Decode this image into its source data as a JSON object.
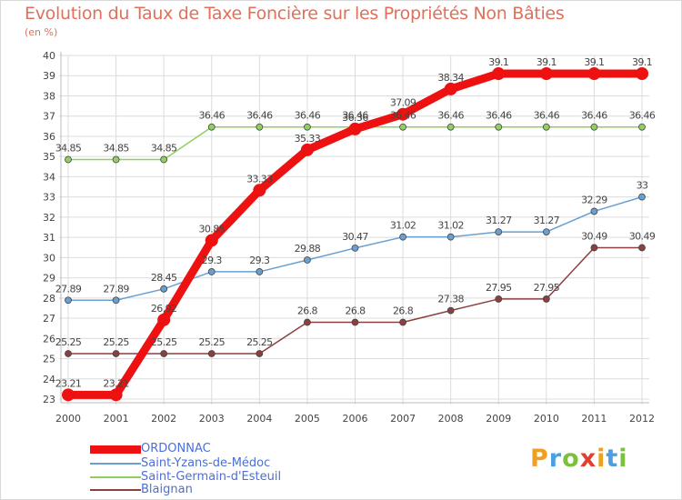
{
  "title": "Evolution du Taux de Taxe Foncière sur les Propriétés Non Bâties",
  "subtitle": "(en %)",
  "logo": {
    "letters": [
      "P",
      "r",
      "o",
      "x",
      "i",
      "t",
      "i"
    ],
    "colors": [
      "#f0a020",
      "#4aa0e0",
      "#7cc040",
      "#e04030",
      "#f0a020",
      "#4aa0e0",
      "#7cc040"
    ]
  },
  "chart_data": {
    "type": "line",
    "x": [
      "2000",
      "2001",
      "2002",
      "2003",
      "2004",
      "2005",
      "2006",
      "2007",
      "2008",
      "2009",
      "2010",
      "2011",
      "2012"
    ],
    "ylim": [
      23,
      40
    ],
    "yticks": [
      23,
      24,
      25,
      26,
      27,
      28,
      29,
      30,
      31,
      32,
      33,
      34,
      35,
      36,
      37,
      38,
      39,
      40
    ],
    "grid": true,
    "legend_position": "bottom-left",
    "series": [
      {
        "name": "ORDONNAC",
        "color": "#ee1111",
        "values": [
          23.21,
          23.21,
          26.92,
          30.85,
          33.33,
          35.33,
          36.36,
          37.09,
          38.34,
          39.1,
          39.1,
          39.1,
          39.1
        ],
        "labels": [
          "23.21",
          "23.21",
          "26.92",
          "30.85",
          "33.33",
          "35.33",
          "36.36",
          "37.09",
          "38.34",
          "39.1",
          "39.1",
          "39.1",
          "39.1"
        ]
      },
      {
        "name": "Saint-Yzans-de-Médoc",
        "color": "#6a9fd0",
        "values": [
          27.89,
          27.89,
          28.45,
          29.3,
          29.3,
          29.88,
          30.47,
          31.02,
          31.02,
          31.27,
          31.27,
          32.29,
          33
        ],
        "labels": [
          "27.89",
          "27.89",
          "28.45",
          "29.3",
          "29.3",
          "29.88",
          "30.47",
          "31.02",
          "31.02",
          "31.27",
          "31.27",
          "32.29",
          "33"
        ]
      },
      {
        "name": "Saint-Germain-d'Esteuil",
        "color": "#90d060",
        "values": [
          34.85,
          34.85,
          34.85,
          36.46,
          36.46,
          36.46,
          36.46,
          36.46,
          36.46,
          36.46,
          36.46,
          36.46,
          36.46
        ],
        "labels": [
          "34.85",
          "34.85",
          "34.85",
          "36.46",
          "36.46",
          "36.46",
          "36.46",
          "36.46",
          "36.46",
          "36.46",
          "36.46",
          "36.46",
          "36.46"
        ]
      },
      {
        "name": "Blaignan",
        "color": "#8a4040",
        "values": [
          25.25,
          25.25,
          25.25,
          25.25,
          25.25,
          26.8,
          26.8,
          26.8,
          27.38,
          27.95,
          27.95,
          30.49,
          30.49
        ],
        "labels": [
          "25.25",
          "25.25",
          "25.25",
          "25.25",
          "25.25",
          "26.8",
          "26.8",
          "26.8",
          "27.38",
          "27.95",
          "27.95",
          "30.49",
          "30.49"
        ]
      }
    ]
  }
}
